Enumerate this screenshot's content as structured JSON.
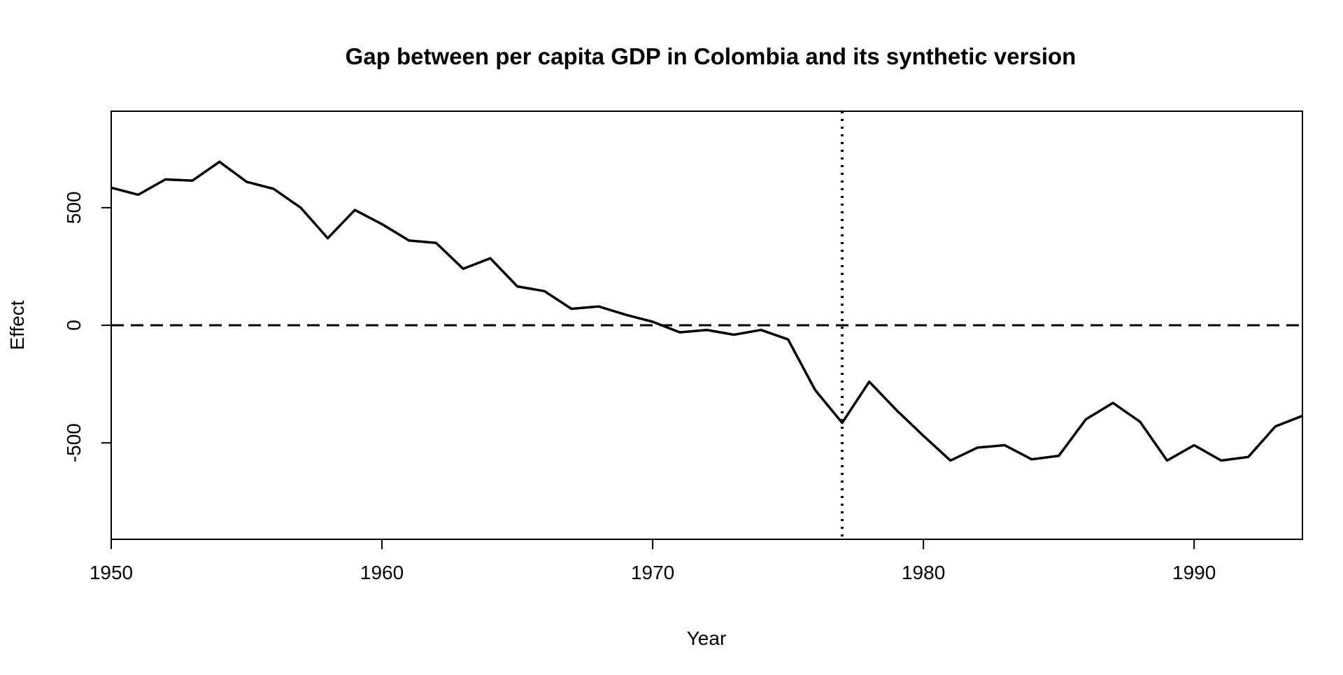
{
  "chart_data": {
    "type": "line",
    "title": "Gap between per capita GDP in Colombia and its synthetic version",
    "xlabel": "Year",
    "ylabel": "Effect",
    "xlim": [
      1950,
      1994
    ],
    "ylim": [
      -910,
      910
    ],
    "x_ticks": [
      1950,
      1960,
      1970,
      1980,
      1990
    ],
    "y_ticks": [
      -500,
      0,
      500
    ],
    "x_tick_labels": [
      "1950",
      "1960",
      "1970",
      "1980",
      "1990"
    ],
    "y_tick_labels": [
      "-500",
      "0",
      "500"
    ],
    "reference_lines": {
      "horizontal_dashed_y": 0,
      "vertical_dotted_x": 1977
    },
    "grid": false,
    "series": [
      {
        "color": "#000000",
        "x": [
          1950,
          1951,
          1952,
          1953,
          1954,
          1955,
          1956,
          1957,
          1958,
          1959,
          1960,
          1961,
          1962,
          1963,
          1964,
          1965,
          1966,
          1967,
          1968,
          1969,
          1970,
          1971,
          1972,
          1973,
          1974,
          1975,
          1976,
          1977,
          1978,
          1979,
          1980,
          1981,
          1982,
          1983,
          1984,
          1985,
          1986,
          1987,
          1988,
          1989,
          1990,
          1991,
          1992,
          1993,
          1994
        ],
        "values": [
          585,
          555,
          620,
          615,
          695,
          610,
          580,
          500,
          370,
          490,
          430,
          360,
          350,
          240,
          285,
          165,
          145,
          70,
          80,
          45,
          15,
          -30,
          -20,
          -40,
          -20,
          -60,
          -275,
          -415,
          -240,
          -360,
          -470,
          -575,
          -520,
          -510,
          -570,
          -555,
          -400,
          -330,
          -410,
          -575,
          -510,
          -575,
          -560,
          -430,
          -385
        ]
      }
    ]
  }
}
